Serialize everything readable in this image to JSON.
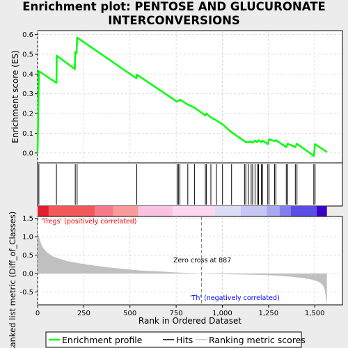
{
  "title": "Enrichment plot: PENTOSE AND GLUCURONATE INTERCONVERSIONS",
  "title_lines": [
    "Enrichment plot: PENTOSE AND GLUCURONATE",
    "INTERCONVERSIONS"
  ],
  "colors": {
    "background": "#ececec",
    "panel": "#ffffff",
    "es_line": "#00ff00",
    "hits": "#000000",
    "metric_fill": "#c0c0c0",
    "zero_cross_line": "#808080",
    "positive_label": "#ff0000",
    "negative_label": "#0000ff"
  },
  "chart_data": [
    {
      "type": "line",
      "name": "enrichment-profile",
      "ylabel": "Enrichment score (ES)",
      "xlim": [
        0,
        1650
      ],
      "ylim": [
        -0.05,
        0.62
      ],
      "yticks": [
        0.0,
        0.1,
        0.2,
        0.3,
        0.4,
        0.5,
        0.6
      ],
      "ytick_labels": [
        "0.0",
        "0.1",
        "0.2",
        "0.3",
        "0.4",
        "0.5",
        "0.6"
      ],
      "grid": true,
      "x": [
        0,
        7,
        102,
        104,
        202,
        204,
        211,
        214,
        535,
        537,
        755,
        762,
        770,
        777,
        813,
        849,
        908,
        914,
        938,
        968,
        1001,
        1050,
        1120,
        1127,
        1141,
        1156,
        1164,
        1177,
        1189,
        1196,
        1211,
        1218,
        1246,
        1253,
        1283,
        1290,
        1346,
        1354,
        1395,
        1404,
        1495,
        1502,
        1566
      ],
      "y": [
        0.0,
        0.415,
        0.355,
        0.493,
        0.425,
        0.512,
        0.505,
        0.585,
        0.378,
        0.397,
        0.26,
        0.264,
        0.27,
        0.267,
        0.245,
        0.23,
        0.19,
        0.2,
        0.18,
        0.165,
        0.145,
        0.105,
        0.06,
        0.055,
        0.055,
        0.058,
        0.052,
        0.062,
        0.055,
        0.065,
        0.055,
        0.063,
        0.045,
        0.07,
        0.06,
        0.065,
        0.03,
        0.047,
        0.03,
        0.047,
        -0.015,
        0.045,
        0.005
      ]
    },
    {
      "type": "hits",
      "name": "hits",
      "x": [
        7,
        102,
        204,
        214,
        537,
        755,
        762,
        770,
        813,
        849,
        908,
        914,
        938,
        968,
        1001,
        1050,
        1120,
        1127,
        1141,
        1156,
        1164,
        1177,
        1189,
        1196,
        1211,
        1218,
        1246,
        1253,
        1283,
        1290,
        1346,
        1354,
        1395,
        1404,
        1495,
        1502
      ]
    },
    {
      "type": "heatmap",
      "name": "ranking-colorbar",
      "xlim": [
        0,
        1566
      ],
      "bands": [
        {
          "x0": 0,
          "x1": 60,
          "color": "#e0202a"
        },
        {
          "x0": 60,
          "x1": 310,
          "color": "#f25858"
        },
        {
          "x0": 310,
          "x1": 410,
          "color": "#f77a8a"
        },
        {
          "x0": 410,
          "x1": 545,
          "color": "#fa9a9a"
        },
        {
          "x0": 545,
          "x1": 730,
          "color": "#f9c2e2"
        },
        {
          "x0": 730,
          "x1": 960,
          "color": "#fcd7ee"
        },
        {
          "x0": 960,
          "x1": 1100,
          "color": "#dcdcf6"
        },
        {
          "x0": 1100,
          "x1": 1240,
          "color": "#c6c6f4"
        },
        {
          "x0": 1240,
          "x1": 1310,
          "color": "#a8a8f2"
        },
        {
          "x0": 1310,
          "x1": 1370,
          "color": "#8080ec"
        },
        {
          "x0": 1370,
          "x1": 1510,
          "color": "#5a4ee4"
        },
        {
          "x0": 1510,
          "x1": 1566,
          "color": "#3a00c8"
        }
      ]
    },
    {
      "type": "area",
      "name": "ranked-list-metric",
      "xlabel": "Rank in Ordered Dataset",
      "ylabel": "Ranked list metric (Diff_of_Classes)",
      "xlim": [
        0,
        1650
      ],
      "ylim": [
        -0.85,
        1.55
      ],
      "xticks": [
        0,
        250,
        500,
        750,
        1000,
        1250,
        1500
      ],
      "xtick_labels": [
        "0",
        "250",
        "500",
        "750",
        "1,000",
        "1,250",
        "1,500"
      ],
      "yticks": [
        -0.5,
        0.0,
        0.5,
        1.0,
        1.5
      ],
      "ytick_labels": [
        "-0.5",
        "0.0",
        "0.5",
        "1.0",
        "1.5"
      ],
      "grid": true,
      "x": [
        0,
        1,
        5,
        10,
        20,
        30,
        50,
        80,
        120,
        160,
        200,
        260,
        330,
        400,
        480,
        560,
        650,
        740,
        820,
        887,
        950,
        1050,
        1150,
        1250,
        1320,
        1380,
        1430,
        1480,
        1510,
        1530,
        1545,
        1555,
        1560,
        1566
      ],
      "y": [
        1.5,
        1.3,
        1.05,
        0.95,
        0.8,
        0.7,
        0.58,
        0.47,
        0.4,
        0.34,
        0.3,
        0.25,
        0.2,
        0.16,
        0.12,
        0.08,
        0.06,
        0.03,
        0.015,
        0.0,
        -0.01,
        -0.02,
        -0.03,
        -0.045,
        -0.065,
        -0.09,
        -0.12,
        -0.16,
        -0.2,
        -0.25,
        -0.32,
        -0.45,
        -0.65,
        -0.85
      ],
      "zero_cross": 887,
      "annotations": {
        "positive": "'Tregs' (positively correlated)",
        "zero_cross": "Zero cross at 887",
        "negative": "'Th' (negatively correlated)"
      }
    }
  ],
  "legend": {
    "position": "bottom",
    "items": [
      {
        "label": "Enrichment profile",
        "color": "#00ff00"
      },
      {
        "label": "Hits",
        "color": "#000000"
      },
      {
        "label": "Ranking metric scores",
        "color": "#c0c0c0"
      }
    ]
  }
}
